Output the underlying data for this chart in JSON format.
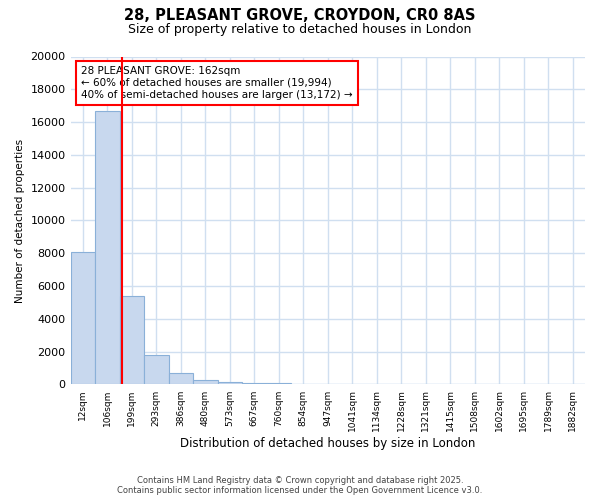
{
  "title_line1": "28, PLEASANT GROVE, CROYDON, CR0 8AS",
  "title_line2": "Size of property relative to detached houses in London",
  "xlabel": "Distribution of detached houses by size in London",
  "ylabel": "Number of detached properties",
  "categories": [
    "12sqm",
    "106sqm",
    "199sqm",
    "293sqm",
    "386sqm",
    "480sqm",
    "573sqm",
    "667sqm",
    "760sqm",
    "854sqm",
    "947sqm",
    "1041sqm",
    "1134sqm",
    "1228sqm",
    "1321sqm",
    "1415sqm",
    "1508sqm",
    "1602sqm",
    "1695sqm",
    "1789sqm",
    "1882sqm"
  ],
  "values": [
    8100,
    16700,
    5400,
    1800,
    700,
    300,
    150,
    100,
    100,
    50,
    0,
    0,
    0,
    0,
    0,
    0,
    0,
    0,
    0,
    0,
    0
  ],
  "bar_color": "#c8d8ee",
  "bar_edge_color": "#8ab0d8",
  "red_line_x": 1.62,
  "annotation_text": "28 PLEASANT GROVE: 162sqm\n← 60% of detached houses are smaller (19,994)\n40% of semi-detached houses are larger (13,172) →",
  "annotation_box_color": "white",
  "annotation_box_edge_color": "red",
  "ylim": [
    0,
    20000
  ],
  "yticks": [
    0,
    2000,
    4000,
    6000,
    8000,
    10000,
    12000,
    14000,
    16000,
    18000,
    20000
  ],
  "background_color": "#ffffff",
  "grid_color": "#d0dff0",
  "footer_line1": "Contains HM Land Registry data © Crown copyright and database right 2025.",
  "footer_line2": "Contains public sector information licensed under the Open Government Licence v3.0."
}
